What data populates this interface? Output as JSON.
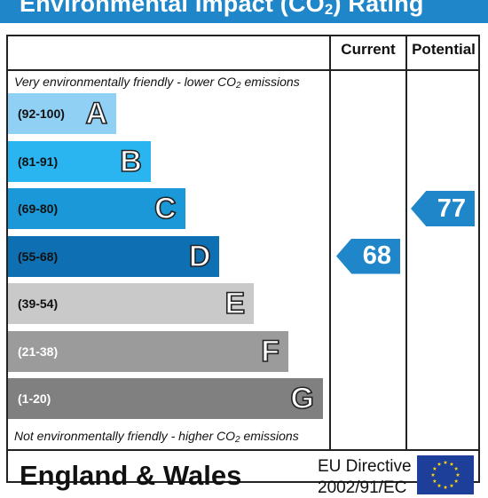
{
  "header": {
    "title_main": "Environmental Impact (CO",
    "title_sub": "2",
    "title_end": ") Rating"
  },
  "columns": {
    "current": "Current",
    "potential": "Potential"
  },
  "notes": {
    "top_a": "Very environmentally friendly - lower CO",
    "top_sub": "2",
    "top_b": " emissions",
    "bottom_a": "Not environmentally friendly - higher CO",
    "bottom_sub": "2",
    "bottom_b": " emissions"
  },
  "footer": {
    "region": "England & Wales",
    "directive_line1": "EU Directive",
    "directive_line2": "2002/91/EC"
  },
  "chart_data": {
    "type": "bar",
    "bands": [
      {
        "letter": "A",
        "range": "(92-100)",
        "min": 92,
        "max": 100,
        "color": "#8fd0f4",
        "text_color": "#111111"
      },
      {
        "letter": "B",
        "range": "(81-91)",
        "min": 81,
        "max": 91,
        "color": "#2bb5f0",
        "text_color": "#111111"
      },
      {
        "letter": "C",
        "range": "(69-80)",
        "min": 69,
        "max": 80,
        "color": "#1b98d7",
        "text_color": "#111111"
      },
      {
        "letter": "D",
        "range": "(55-68)",
        "min": 55,
        "max": 68,
        "color": "#0f6fb3",
        "text_color": "#111111"
      },
      {
        "letter": "E",
        "range": "(39-54)",
        "min": 39,
        "max": 54,
        "color": "#c9c9c9",
        "text_color": "#111111"
      },
      {
        "letter": "F",
        "range": "(21-38)",
        "min": 21,
        "max": 38,
        "color": "#9b9b9b",
        "text_color": "#ffffff"
      },
      {
        "letter": "G",
        "range": "(1-20)",
        "min": 1,
        "max": 20,
        "color": "#808080",
        "text_color": "#ffffff"
      }
    ],
    "current": {
      "value": 68,
      "band": "D"
    },
    "potential": {
      "value": 77,
      "band": "C"
    },
    "arrow_color": "#1f86c9"
  }
}
